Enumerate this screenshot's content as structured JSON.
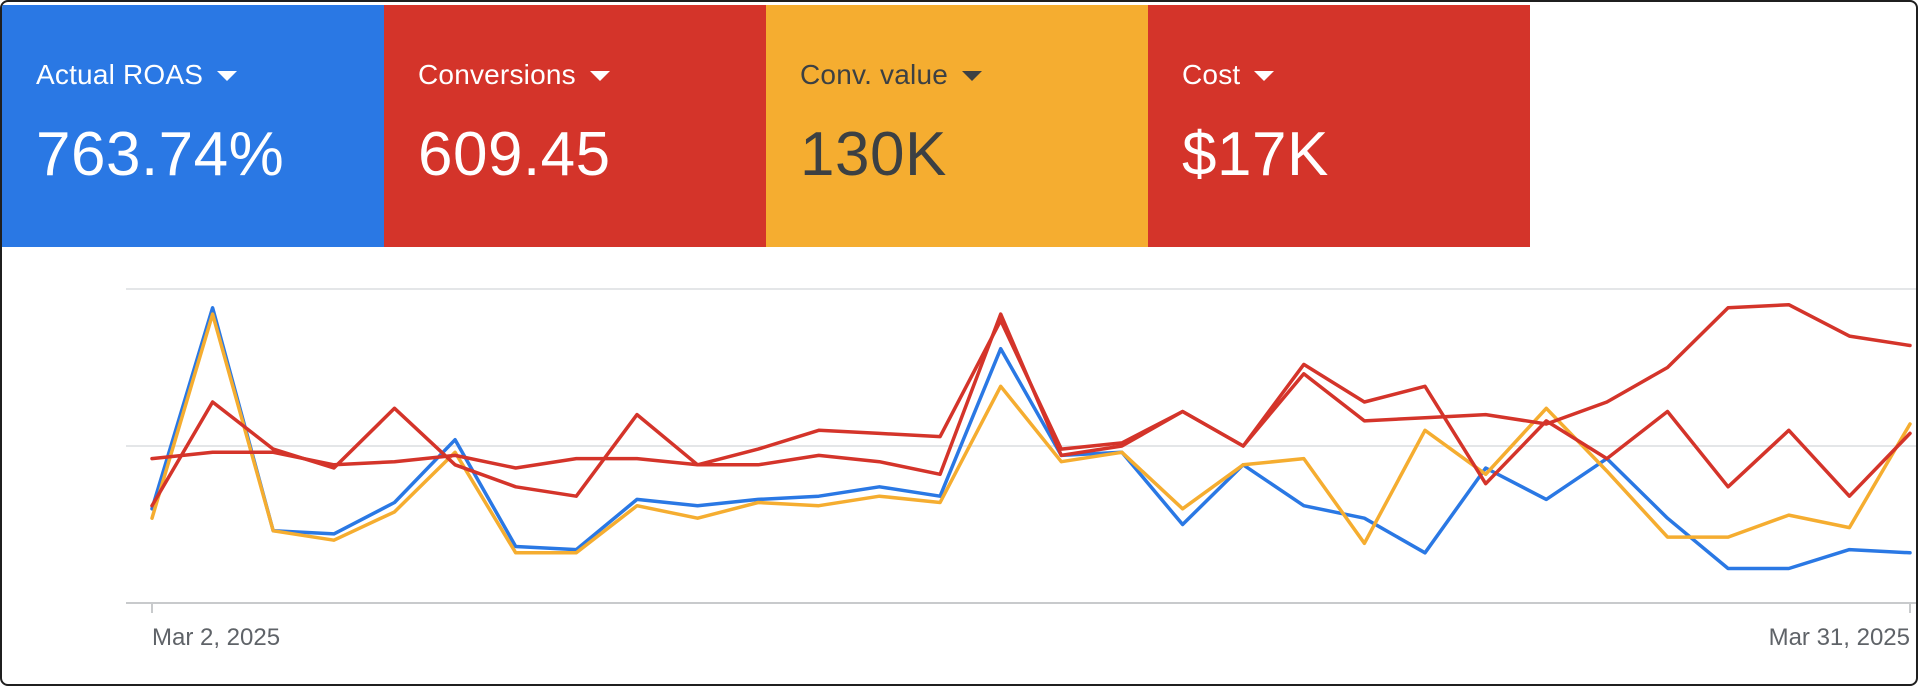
{
  "cards": [
    {
      "label": "Actual ROAS",
      "value": "763.74%",
      "color": "#2a78e4",
      "text_color": "#ffffff"
    },
    {
      "label": "Conversions",
      "value": "609.45",
      "color": "#d4342a",
      "text_color": "#ffffff"
    },
    {
      "label": "Conv. value",
      "value": "130K",
      "color": "#f5ad30",
      "text_color": "#3c4043"
    },
    {
      "label": "Cost",
      "value": "$17K",
      "color": "#d4342a",
      "text_color": "#ffffff"
    }
  ],
  "chart_data": {
    "type": "line",
    "x_start_label": "Mar 2, 2025",
    "x_end_label": "Mar 31, 2025",
    "x": [
      "Mar 2",
      "Mar 3",
      "Mar 4",
      "Mar 5",
      "Mar 6",
      "Mar 7",
      "Mar 8",
      "Mar 9",
      "Mar 10",
      "Mar 11",
      "Mar 12",
      "Mar 13",
      "Mar 14",
      "Mar 15",
      "Mar 16",
      "Mar 17",
      "Mar 18",
      "Mar 19",
      "Mar 20",
      "Mar 21",
      "Mar 22",
      "Mar 23",
      "Mar 24",
      "Mar 25",
      "Mar 26",
      "Mar 27",
      "Mar 28",
      "Mar 29",
      "Mar 30",
      "Mar 31"
    ],
    "ylim": [
      0,
      100
    ],
    "gridlines": [
      0,
      50,
      100
    ],
    "series": [
      {
        "color": "#2a78e4",
        "values": [
          30,
          94,
          23,
          22,
          32,
          52,
          18,
          17,
          33,
          31,
          33,
          34,
          37,
          34,
          81,
          47,
          48,
          25,
          44,
          31,
          27,
          16,
          43,
          33,
          46,
          27,
          11,
          11,
          17,
          16
        ]
      },
      {
        "color": "#f5ad30",
        "values": [
          27,
          92,
          23,
          20,
          29,
          48,
          16,
          16,
          31,
          27,
          32,
          31,
          34,
          32,
          69,
          45,
          48,
          30,
          44,
          46,
          19,
          55,
          41,
          62,
          42,
          21,
          21,
          28,
          24,
          57
        ]
      },
      {
        "color": "#d4342a",
        "values": [
          31,
          64,
          49,
          43,
          62,
          44,
          37,
          34,
          60,
          44,
          44,
          47,
          45,
          41,
          92,
          47,
          50,
          61,
          50,
          76,
          64,
          69,
          38,
          58,
          46,
          61,
          37,
          55,
          34,
          54
        ]
      },
      {
        "color": "#d4342a",
        "values": [
          46,
          48,
          48,
          44,
          45,
          47,
          43,
          46,
          46,
          44,
          49,
          55,
          54,
          53,
          90,
          49,
          51,
          61,
          50,
          73,
          58,
          59,
          60,
          57,
          64,
          75,
          94,
          95,
          85,
          82
        ]
      }
    ]
  }
}
